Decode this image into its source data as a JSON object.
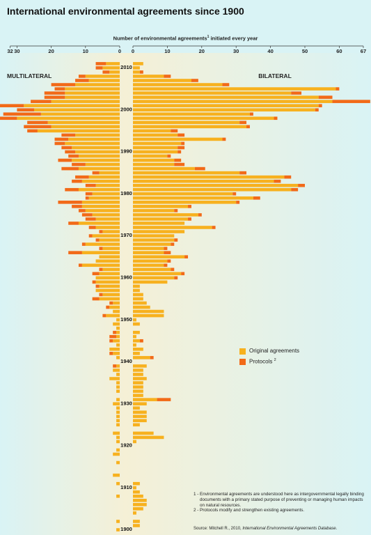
{
  "title": "International environmental agreements since 1900",
  "subtitle": "Number of environmental agreements",
  "subtitle_marker": "1",
  "subtitle_suffix": " initiated every year",
  "colors": {
    "original": "#f7b11f",
    "protocol": "#f26a18"
  },
  "chart_data": {
    "type": "bar",
    "orientation": "horizontal, back-to-back",
    "year_range": [
      1900,
      2011
    ],
    "year_tick_labels": [
      "2010",
      "2000",
      "1990",
      "1980",
      "1970",
      "1960",
      "1950",
      "1940",
      "1930",
      "1920",
      "1910",
      "1900"
    ],
    "left_panel": {
      "label": "MULTILATERAL",
      "axis_ticks": [
        "32",
        "30",
        "20",
        "10",
        "0"
      ],
      "xlim": [
        0,
        32
      ]
    },
    "right_panel": {
      "label": "BILATERAL",
      "axis_ticks": [
        "0",
        "10",
        "20",
        "30",
        "40",
        "50",
        "60",
        "67"
      ],
      "xlim": [
        0,
        67
      ]
    },
    "series": [
      {
        "name": "Original agreements"
      },
      {
        "name": "Protocols",
        "marker": "2"
      }
    ],
    "multilateral_original": [
      1,
      0,
      1,
      0,
      0,
      0,
      0,
      0,
      1,
      0,
      0,
      1,
      0,
      2,
      0,
      0,
      1,
      0,
      2,
      1,
      0,
      1,
      1,
      2,
      0,
      1,
      1,
      1,
      1,
      1,
      2,
      1,
      0,
      1,
      1,
      1,
      3,
      1,
      2,
      1,
      0,
      1,
      2,
      3,
      1,
      2,
      1,
      1,
      1,
      2,
      1,
      4,
      2,
      3,
      2,
      6,
      5,
      7,
      6,
      7,
      7,
      6,
      5,
      11,
      7,
      6,
      11,
      5,
      10,
      6,
      8,
      5,
      7,
      12,
      7,
      8,
      10,
      11,
      11,
      9,
      8,
      12,
      7,
      11,
      9,
      6,
      12,
      10,
      14,
      12,
      13,
      14,
      16,
      15,
      13,
      24,
      20,
      21,
      30,
      23,
      25,
      28,
      20,
      16,
      16,
      16,
      13,
      9,
      10,
      3,
      5,
      4
    ],
    "multilateral_protocol": [
      0,
      0,
      0,
      0,
      0,
      0,
      0,
      0,
      0,
      0,
      0,
      0,
      0,
      0,
      0,
      0,
      0,
      0,
      0,
      0,
      0,
      0,
      0,
      0,
      0,
      0,
      0,
      0,
      0,
      0,
      0,
      0,
      0,
      0,
      0,
      0,
      0,
      0,
      0,
      1,
      0,
      0,
      1,
      0,
      0,
      1,
      2,
      1,
      0,
      0,
      0,
      1,
      0,
      1,
      1,
      2,
      1,
      0,
      1,
      1,
      0,
      2,
      1,
      1,
      0,
      0,
      4,
      1,
      1,
      1,
      1,
      1,
      2,
      3,
      3,
      3,
      2,
      3,
      7,
      1,
      2,
      4,
      3,
      3,
      4,
      2,
      5,
      4,
      4,
      3,
      3,
      3,
      3,
      4,
      4,
      3,
      8,
      6,
      9,
      11,
      5,
      9,
      6,
      6,
      6,
      3,
      7,
      4,
      2,
      2,
      2,
      3
    ],
    "bilateral_original": [
      0,
      2,
      2,
      0,
      1,
      3,
      4,
      4,
      3,
      2,
      1,
      2,
      0,
      0,
      0,
      0,
      0,
      0,
      0,
      0,
      0,
      1,
      9,
      6,
      0,
      2,
      4,
      4,
      4,
      2,
      4,
      7,
      3,
      3,
      3,
      3,
      4,
      3,
      3,
      4,
      0,
      5,
      2,
      3,
      1,
      2,
      1,
      2,
      0,
      2,
      1,
      9,
      9,
      5,
      4,
      3,
      3,
      2,
      2,
      10,
      12,
      14,
      11,
      9,
      10,
      15,
      9,
      9,
      11,
      12,
      12,
      15,
      23,
      15,
      16,
      19,
      12,
      16,
      30,
      35,
      29,
      46,
      48,
      41,
      44,
      31,
      18,
      12,
      12,
      10,
      13,
      13,
      14,
      26,
      13,
      11,
      33,
      31,
      41,
      34,
      53,
      54,
      58,
      54,
      46,
      59,
      26,
      17,
      9,
      2,
      2,
      3
    ],
    "bilateral_protocol": [
      0,
      0,
      0,
      0,
      0,
      0,
      0,
      0,
      0,
      0,
      0,
      0,
      0,
      0,
      0,
      0,
      0,
      0,
      0,
      0,
      0,
      0,
      0,
      0,
      0,
      0,
      0,
      0,
      0,
      0,
      0,
      4,
      0,
      0,
      0,
      0,
      0,
      0,
      0,
      0,
      0,
      1,
      0,
      0,
      0,
      1,
      0,
      0,
      0,
      0,
      0,
      0,
      0,
      0,
      0,
      0,
      0,
      0,
      0,
      0,
      1,
      1,
      1,
      1,
      1,
      1,
      2,
      1,
      1,
      1,
      0,
      0,
      1,
      0,
      1,
      1,
      1,
      1,
      1,
      2,
      1,
      2,
      2,
      2,
      2,
      2,
      3,
      3,
      2,
      1,
      1,
      2,
      1,
      1,
      2,
      2,
      1,
      2,
      1,
      1,
      1,
      1,
      11,
      4,
      3,
      1,
      2,
      2,
      2,
      1,
      0,
      0
    ]
  },
  "legend": [
    {
      "label": "Original agreements"
    },
    {
      "label": "Protocols",
      "marker": "2"
    }
  ],
  "notes": [
    {
      "num": "1 -",
      "text": "Environmental agreements are understood here as intergovernmental legally binding documents with a primary stated purpose of preventing or managing human impacts on natural resources."
    },
    {
      "num": "2 -",
      "text": "Protocols modify and strengthen existing agreements."
    }
  ],
  "source": {
    "prefix": "Source: Mitchell R., 2010, ",
    "title": "International Environmental Agreements Database",
    "suffix": "."
  }
}
